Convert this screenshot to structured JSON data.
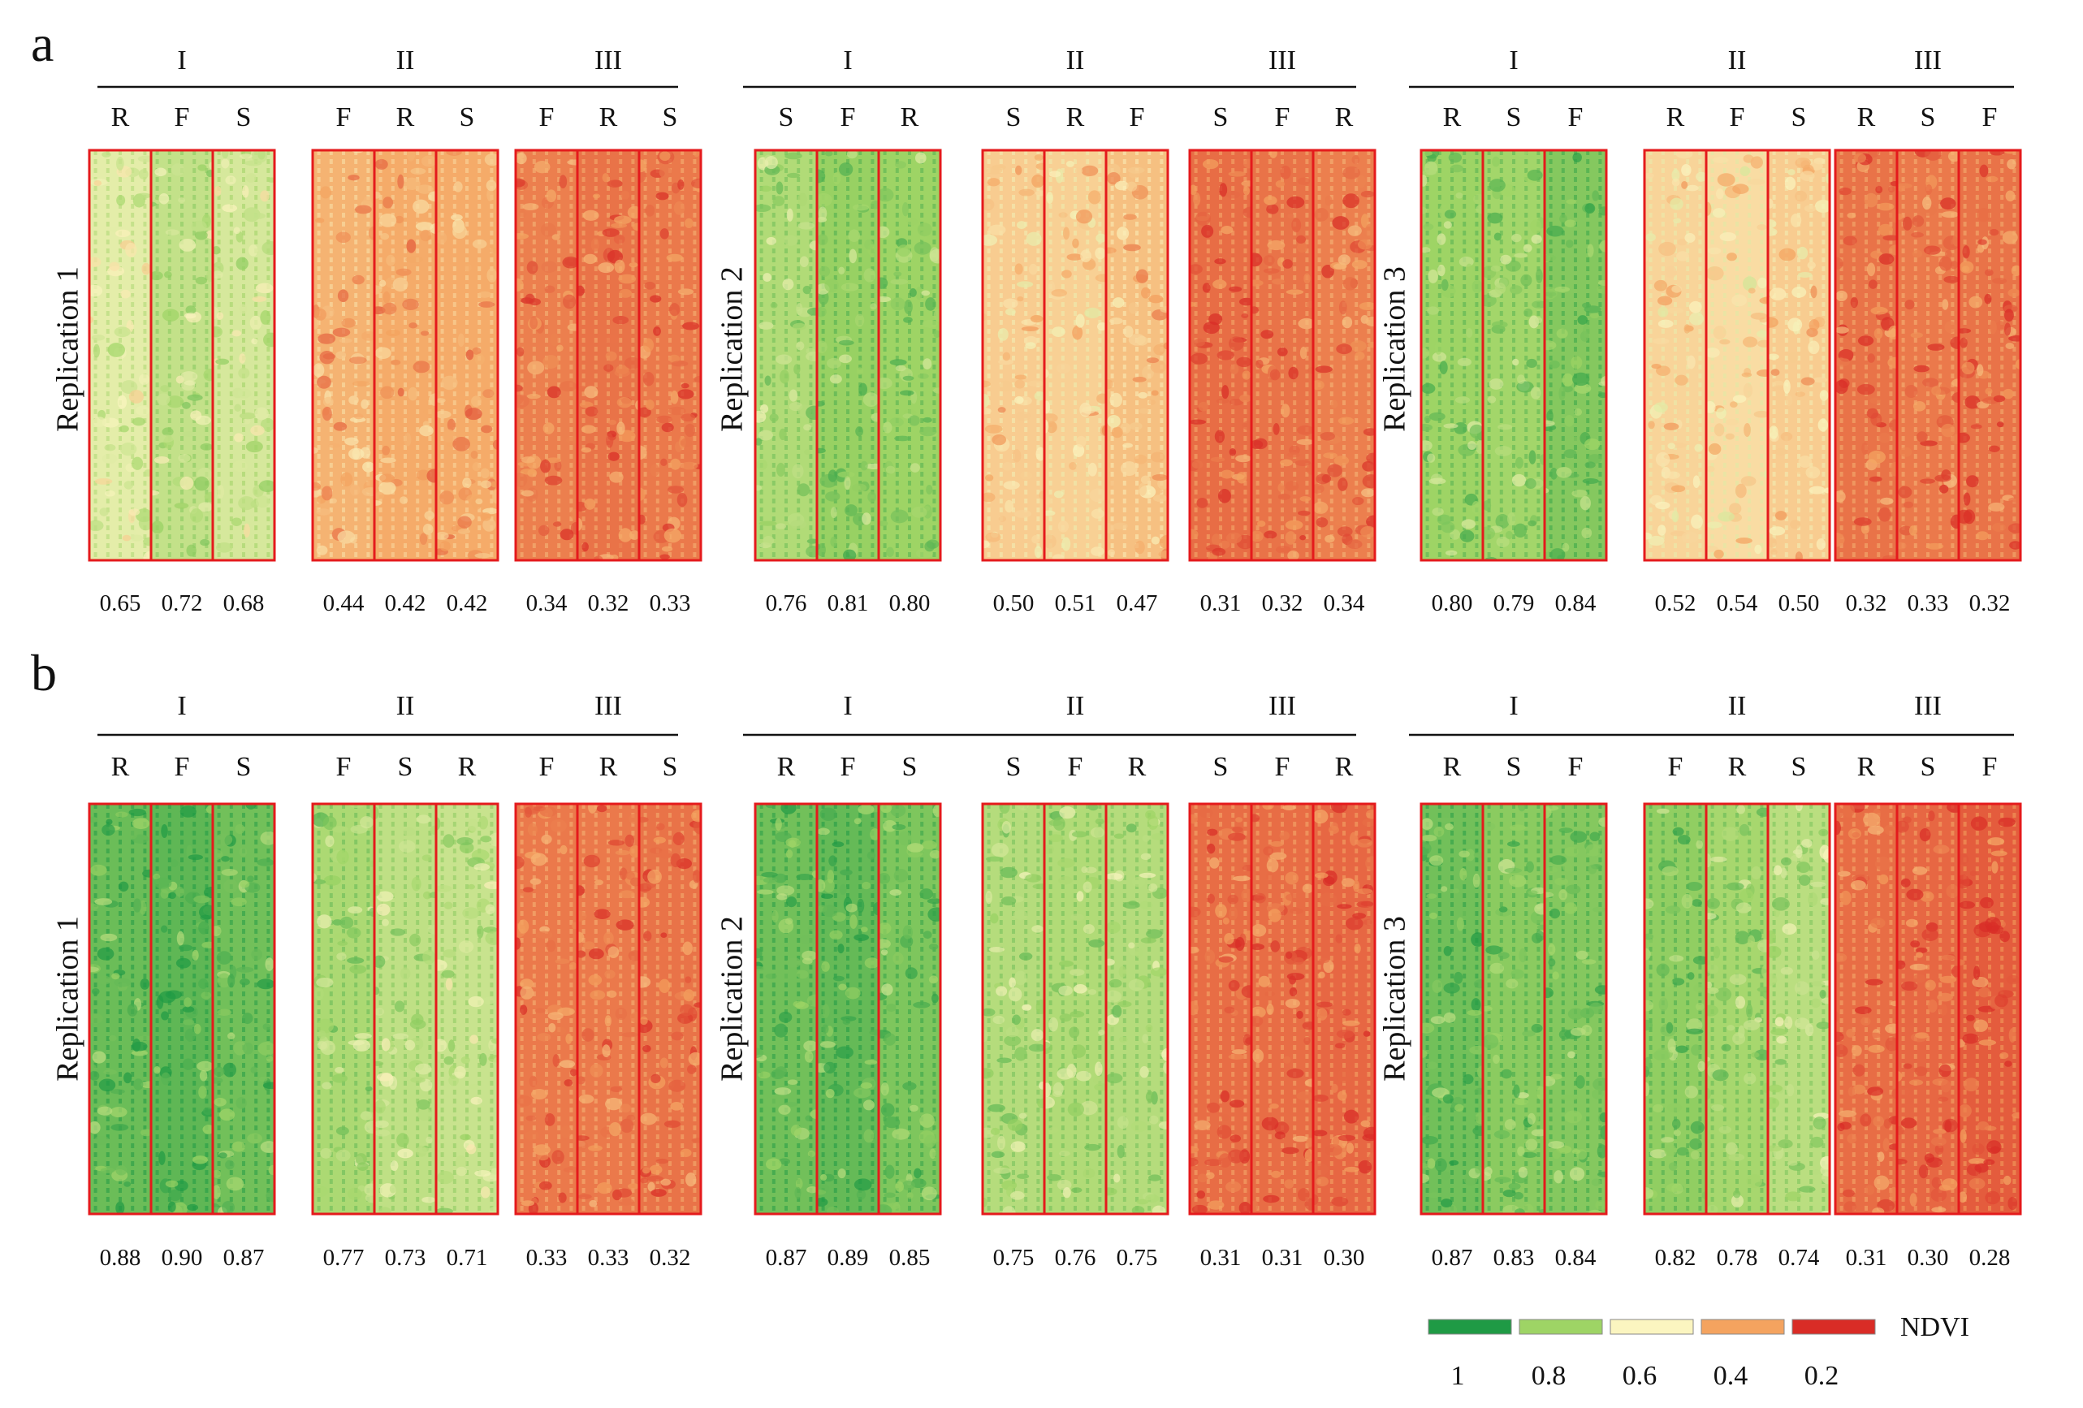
{
  "legend": {
    "title": "NDVI",
    "items": [
      {
        "label": "1",
        "color": "#1f9a45"
      },
      {
        "label": "0.8",
        "color": "#9ed465"
      },
      {
        "label": "0.6",
        "color": "#fbf5c0"
      },
      {
        "label": "0.4",
        "color": "#f4a35f"
      },
      {
        "label": "0.2",
        "color": "#d92c26"
      }
    ]
  },
  "panels": [
    {
      "label": "a",
      "replications": [
        {
          "label": "Replication 1",
          "groups": [
            {
              "label": "I",
              "plots": [
                {
                  "t": "R",
                  "v": 0.65
                },
                {
                  "t": "F",
                  "v": 0.72
                },
                {
                  "t": "S",
                  "v": 0.68
                }
              ]
            },
            {
              "label": "II",
              "plots": [
                {
                  "t": "F",
                  "v": 0.44
                },
                {
                  "t": "R",
                  "v": 0.42
                },
                {
                  "t": "S",
                  "v": 0.42
                }
              ]
            },
            {
              "label": "III",
              "plots": [
                {
                  "t": "F",
                  "v": 0.34
                },
                {
                  "t": "R",
                  "v": 0.32
                },
                {
                  "t": "S",
                  "v": 0.33
                }
              ]
            }
          ]
        },
        {
          "label": "Replication 2",
          "groups": [
            {
              "label": "I",
              "plots": [
                {
                  "t": "S",
                  "v": 0.76
                },
                {
                  "t": "F",
                  "v": 0.81
                },
                {
                  "t": "R",
                  "v": 0.8
                }
              ]
            },
            {
              "label": "II",
              "plots": [
                {
                  "t": "S",
                  "v": 0.5
                },
                {
                  "t": "R",
                  "v": 0.51
                },
                {
                  "t": "F",
                  "v": 0.47
                }
              ]
            },
            {
              "label": "III",
              "plots": [
                {
                  "t": "S",
                  "v": 0.31
                },
                {
                  "t": "F",
                  "v": 0.32
                },
                {
                  "t": "R",
                  "v": 0.34
                }
              ]
            }
          ]
        },
        {
          "label": "Replication 3",
          "groups": [
            {
              "label": "I",
              "plots": [
                {
                  "t": "R",
                  "v": 0.8
                },
                {
                  "t": "S",
                  "v": 0.79
                },
                {
                  "t": "F",
                  "v": 0.84
                }
              ]
            },
            {
              "label": "II",
              "plots": [
                {
                  "t": "R",
                  "v": 0.52
                },
                {
                  "t": "F",
                  "v": 0.54
                },
                {
                  "t": "S",
                  "v": 0.5
                }
              ]
            },
            {
              "label": "III",
              "plots": [
                {
                  "t": "R",
                  "v": 0.32
                },
                {
                  "t": "S",
                  "v": 0.33
                },
                {
                  "t": "F",
                  "v": 0.32
                }
              ]
            }
          ]
        }
      ]
    },
    {
      "label": "b",
      "replications": [
        {
          "label": "Replication 1",
          "groups": [
            {
              "label": "I",
              "plots": [
                {
                  "t": "R",
                  "v": 0.88
                },
                {
                  "t": "F",
                  "v": 0.9
                },
                {
                  "t": "S",
                  "v": 0.87
                }
              ]
            },
            {
              "label": "II",
              "plots": [
                {
                  "t": "F",
                  "v": 0.77
                },
                {
                  "t": "S",
                  "v": 0.73
                },
                {
                  "t": "R",
                  "v": 0.71
                }
              ]
            },
            {
              "label": "III",
              "plots": [
                {
                  "t": "F",
                  "v": 0.33
                },
                {
                  "t": "R",
                  "v": 0.33
                },
                {
                  "t": "S",
                  "v": 0.32
                }
              ]
            }
          ]
        },
        {
          "label": "Replication 2",
          "groups": [
            {
              "label": "I",
              "plots": [
                {
                  "t": "R",
                  "v": 0.87
                },
                {
                  "t": "F",
                  "v": 0.89
                },
                {
                  "t": "S",
                  "v": 0.85
                }
              ]
            },
            {
              "label": "II",
              "plots": [
                {
                  "t": "S",
                  "v": 0.75
                },
                {
                  "t": "F",
                  "v": 0.76
                },
                {
                  "t": "R",
                  "v": 0.75
                }
              ]
            },
            {
              "label": "III",
              "plots": [
                {
                  "t": "S",
                  "v": 0.31
                },
                {
                  "t": "F",
                  "v": 0.31
                },
                {
                  "t": "R",
                  "v": 0.3
                }
              ]
            }
          ]
        },
        {
          "label": "Replication 3",
          "groups": [
            {
              "label": "I",
              "plots": [
                {
                  "t": "R",
                  "v": 0.87
                },
                {
                  "t": "S",
                  "v": 0.83
                },
                {
                  "t": "F",
                  "v": 0.84
                }
              ]
            },
            {
              "label": "II",
              "plots": [
                {
                  "t": "F",
                  "v": 0.82
                },
                {
                  "t": "R",
                  "v": 0.78
                },
                {
                  "t": "S",
                  "v": 0.74
                }
              ]
            },
            {
              "label": "III",
              "plots": [
                {
                  "t": "R",
                  "v": 0.31
                },
                {
                  "t": "S",
                  "v": 0.3
                },
                {
                  "t": "F",
                  "v": 0.28
                }
              ]
            }
          ]
        }
      ]
    }
  ]
}
